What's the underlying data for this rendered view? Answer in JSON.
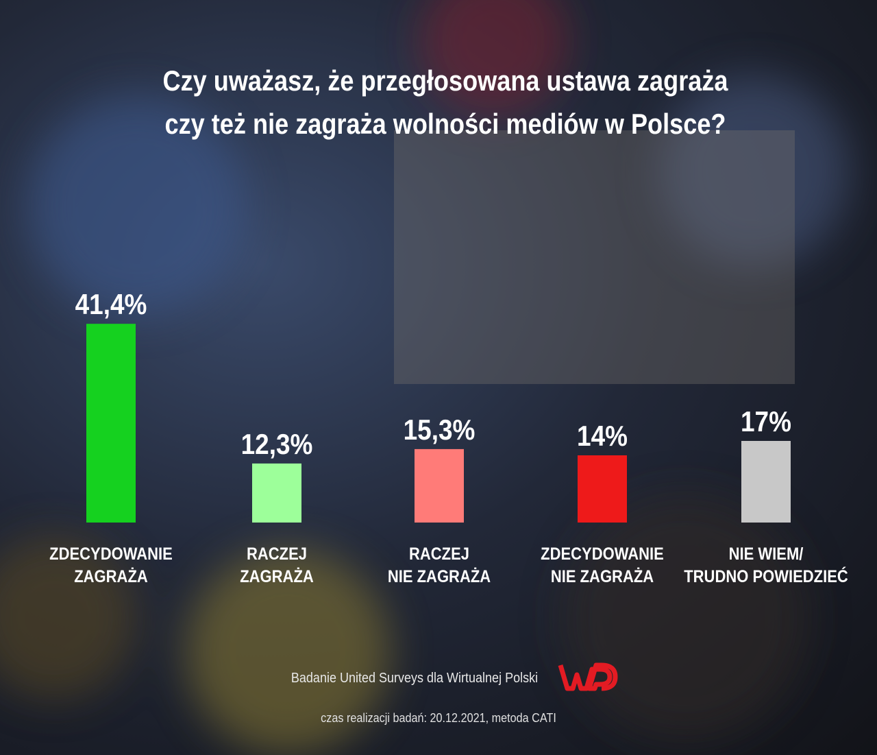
{
  "chart_data": {
    "type": "bar",
    "title": "Czy uważasz, że przegłosowana ustawa zagraża\nczy też nie zagraża wolności mediów w Polsce?",
    "categories": [
      "ZDECYDOWANIE\nZAGRAŻA",
      "RACZEJ\nZAGRAŻA",
      "RACZEJ\nNIE ZAGRAŻA",
      "ZDECYDOWANIE\nNIE ZAGRAŻA",
      "NIE WIEM/\nTRUDNO POWIEDZIEĆ"
    ],
    "values": [
      41.4,
      12.3,
      15.3,
      14,
      17
    ],
    "value_labels": [
      "41,4%",
      "12,3%",
      "15,3%",
      "14%",
      "17%"
    ],
    "colors": [
      "#15d11f",
      "#9dff9a",
      "#ff7b78",
      "#ee1a1a",
      "#c8c8c8"
    ],
    "source": "Badanie United Surveys dla Wirtualnej Polski",
    "note": "czas realizacji badań: 20.12.2021, metoda CATI"
  }
}
